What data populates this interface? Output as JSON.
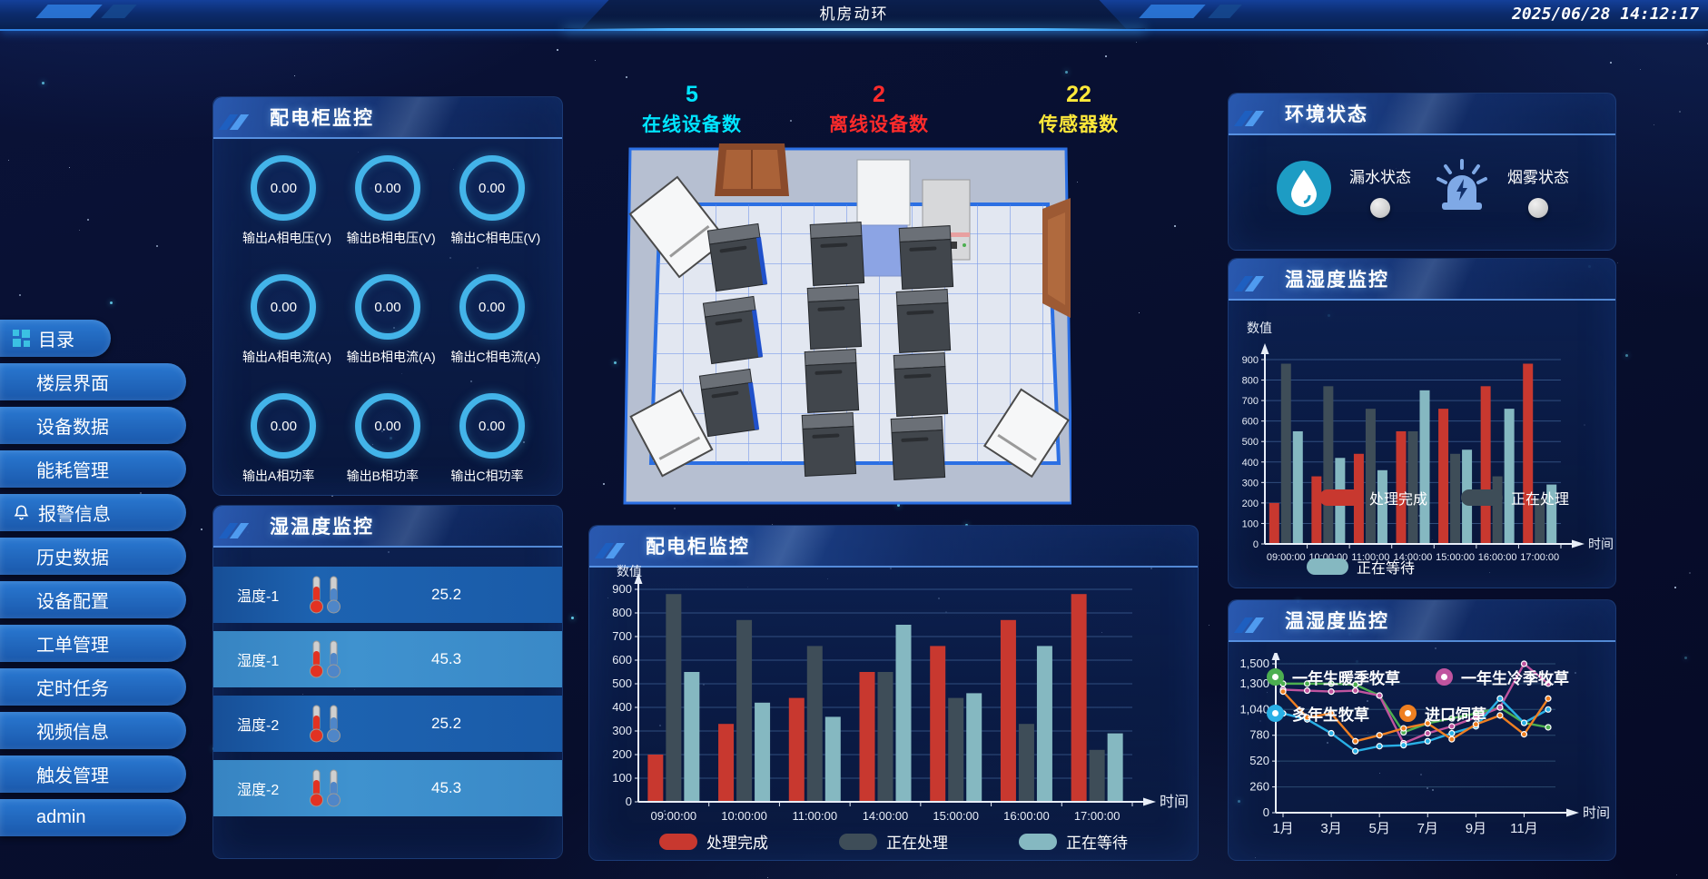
{
  "header": {
    "title": "机房动环",
    "timestamp": "2025/06/28 14:12:17"
  },
  "sidebar": {
    "items": [
      {
        "label": "目录",
        "icon": "dashboard-grid-icon"
      },
      {
        "label": "楼层界面"
      },
      {
        "label": "设备数据"
      },
      {
        "label": "能耗管理"
      },
      {
        "label": "报警信息",
        "icon": "bell-icon"
      },
      {
        "label": "历史数据"
      },
      {
        "label": "设备配置"
      },
      {
        "label": "工单管理"
      },
      {
        "label": "定时任务"
      },
      {
        "label": "视频信息"
      },
      {
        "label": "触发管理"
      },
      {
        "label": "admin"
      }
    ]
  },
  "power_panel": {
    "title": "配电柜监控",
    "gauges": [
      {
        "value": "0.00",
        "label": "输出A相电压(V)"
      },
      {
        "value": "0.00",
        "label": "输出B相电压(V)"
      },
      {
        "value": "0.00",
        "label": "输出C相电压(V)"
      },
      {
        "value": "0.00",
        "label": "输出A相电流(A)"
      },
      {
        "value": "0.00",
        "label": "输出B相电流(A)"
      },
      {
        "value": "0.00",
        "label": "输出C相电流(A)"
      },
      {
        "value": "0.00",
        "label": "输出A相功率"
      },
      {
        "value": "0.00",
        "label": "输出B相功率"
      },
      {
        "value": "0.00",
        "label": "输出C相功率"
      }
    ]
  },
  "temp_panel": {
    "title": "湿温度监控",
    "rows": [
      {
        "label": "温度-1",
        "value": "25.2"
      },
      {
        "label": "湿度-1",
        "value": "45.3"
      },
      {
        "label": "温度-2",
        "value": "25.2"
      },
      {
        "label": "湿度-2",
        "value": "45.3"
      }
    ]
  },
  "device_counts": [
    {
      "value": "5",
      "label": "在线设备数",
      "color": "#00e5ff"
    },
    {
      "value": "2",
      "label": "离线设备数",
      "color": "#ff2b2b"
    },
    {
      "value": "22",
      "label": "传感器数",
      "color": "#ffe93a"
    }
  ],
  "env_panel": {
    "title": "环境状态",
    "items": [
      {
        "icon": "water-drop-icon",
        "label": "漏水状态",
        "status_color": "#c9c9c9"
      },
      {
        "icon": "siren-icon",
        "label": "烟雾状态",
        "status_color": "#c9c9c9"
      }
    ]
  },
  "chart_data": [
    {
      "id": "mid_bar",
      "type": "bar",
      "panel_title": "配电柜监控",
      "ylabel": "数值",
      "xlabel": "时间",
      "ylim": [
        0,
        900
      ],
      "ytick_interval": 100,
      "grid": true,
      "legend_position": "bottom",
      "categories": [
        "09:00:00",
        "10:00:00",
        "11:00:00",
        "14:00:00",
        "15:00:00",
        "16:00:00",
        "17:00:00"
      ],
      "series": [
        {
          "name": "处理完成",
          "color": "#c8382f",
          "values": [
            200,
            330,
            440,
            550,
            660,
            770,
            880
          ]
        },
        {
          "name": "正在处理",
          "color": "#3e4d58",
          "values": [
            880,
            770,
            660,
            550,
            440,
            330,
            220
          ]
        },
        {
          "name": "正在等待",
          "color": "#85b8c1",
          "values": [
            550,
            420,
            360,
            750,
            460,
            660,
            290
          ]
        }
      ]
    },
    {
      "id": "right_bar",
      "type": "bar",
      "panel_title": "温湿度监控",
      "ylabel": "数值",
      "xlabel": "时间",
      "ylim": [
        0,
        900
      ],
      "ytick_interval": 100,
      "grid": true,
      "legend_position": "overlay",
      "categories": [
        "09:00:00",
        "10:00:00",
        "11:00:00",
        "14:00:00",
        "15:00:00",
        "16:00:00",
        "17:00:00"
      ],
      "series": [
        {
          "name": "处理完成",
          "color": "#c8382f",
          "values": [
            200,
            330,
            440,
            550,
            660,
            770,
            880
          ]
        },
        {
          "name": "正在处理",
          "color": "#3e4d58",
          "values": [
            880,
            770,
            660,
            550,
            440,
            330,
            220
          ]
        },
        {
          "name": "正在等待",
          "color": "#85b8c1",
          "values": [
            550,
            420,
            360,
            750,
            460,
            660,
            290
          ]
        }
      ]
    },
    {
      "id": "right_line",
      "type": "line",
      "panel_title": "温湿度监控",
      "xlabel": "时间",
      "ylim": [
        0,
        1500
      ],
      "yticks": [
        0,
        260,
        520,
        780,
        1040,
        1300,
        1500
      ],
      "ytick_labels": [
        "0",
        "260",
        "520",
        "780",
        "1,040",
        "1,300",
        "1,500"
      ],
      "x": [
        "1月",
        "2月",
        "3月",
        "4月",
        "5月",
        "6月",
        "7月",
        "8月",
        "9月",
        "10月",
        "11月",
        "12月"
      ],
      "xticks_shown": [
        "1月",
        "3月",
        "5月",
        "7月",
        "9月",
        "11月"
      ],
      "grid": true,
      "legend_position": "top-overlay",
      "series": [
        {
          "name": "一年生暖季牧草",
          "color": "#4caf50",
          "values": [
            1300,
            1300,
            1300,
            1290,
            1180,
            810,
            900,
            950,
            1000,
            1060,
            905,
            860
          ]
        },
        {
          "name": "一年生冷季牧草",
          "color": "#c0549f",
          "values": [
            1240,
            1230,
            1220,
            1230,
            1180,
            700,
            800,
            870,
            960,
            1060,
            1500,
            1300
          ]
        },
        {
          "name": "多年生牧草",
          "color": "#29b0e6",
          "values": [
            1000,
            940,
            800,
            620,
            670,
            680,
            720,
            800,
            870,
            1150,
            905,
            1040
          ]
        },
        {
          "name": "进口饲草",
          "color": "#ef7f21",
          "values": [
            1220,
            960,
            1000,
            720,
            780,
            850,
            900,
            740,
            890,
            980,
            790,
            1150
          ]
        }
      ]
    }
  ]
}
